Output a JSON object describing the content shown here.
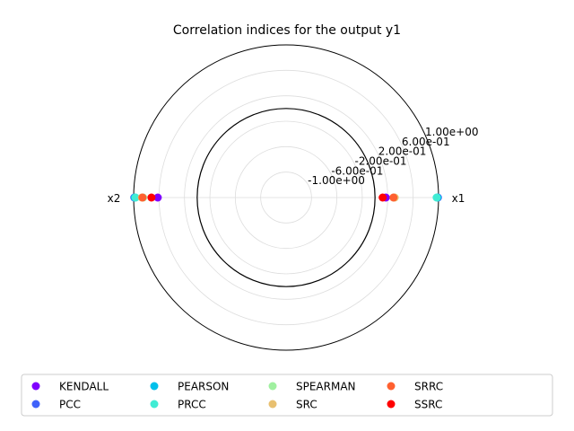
{
  "chart_data": {
    "type": "scatter",
    "subtype": "polar-radar",
    "title": "Correlation indices for the output y1",
    "axes": [
      "x1",
      "x2"
    ],
    "radial_ticks": [
      "-1.00e+00",
      "-6.00e-01",
      "-2.00e-01",
      "2.00e-01",
      "6.00e-01",
      "1.00e+00"
    ],
    "radial_tick_values": [
      -1.0,
      -0.6,
      -0.2,
      0.2,
      0.6,
      1.0
    ],
    "rlim": [
      -1.4,
      1.0
    ],
    "zero_circle": 0,
    "grid": true,
    "legend_position": "bottom",
    "series": [
      {
        "name": "KENDALL",
        "color": "#8000ff",
        "values": [
          0.17,
          0.62
        ]
      },
      {
        "name": "PCC",
        "color": "#4062fa",
        "values": [
          0.99,
          0.99
        ]
      },
      {
        "name": "PEARSON",
        "color": "#00c0eb",
        "values": [
          0.98,
          0.98
        ]
      },
      {
        "name": "PRCC",
        "color": "#40ecd4",
        "values": [
          0.97,
          0.97
        ]
      },
      {
        "name": "SPEARMAN",
        "color": "#a0f0a0",
        "values": [
          0.3,
          0.85
        ]
      },
      {
        "name": "SRC",
        "color": "#e8c070",
        "values": [
          0.31,
          0.87
        ]
      },
      {
        "name": "SRRC",
        "color": "#ff6030",
        "values": [
          0.29,
          0.86
        ]
      },
      {
        "name": "SSRC",
        "color": "#ff0000",
        "values": [
          0.12,
          0.72
        ]
      }
    ]
  }
}
